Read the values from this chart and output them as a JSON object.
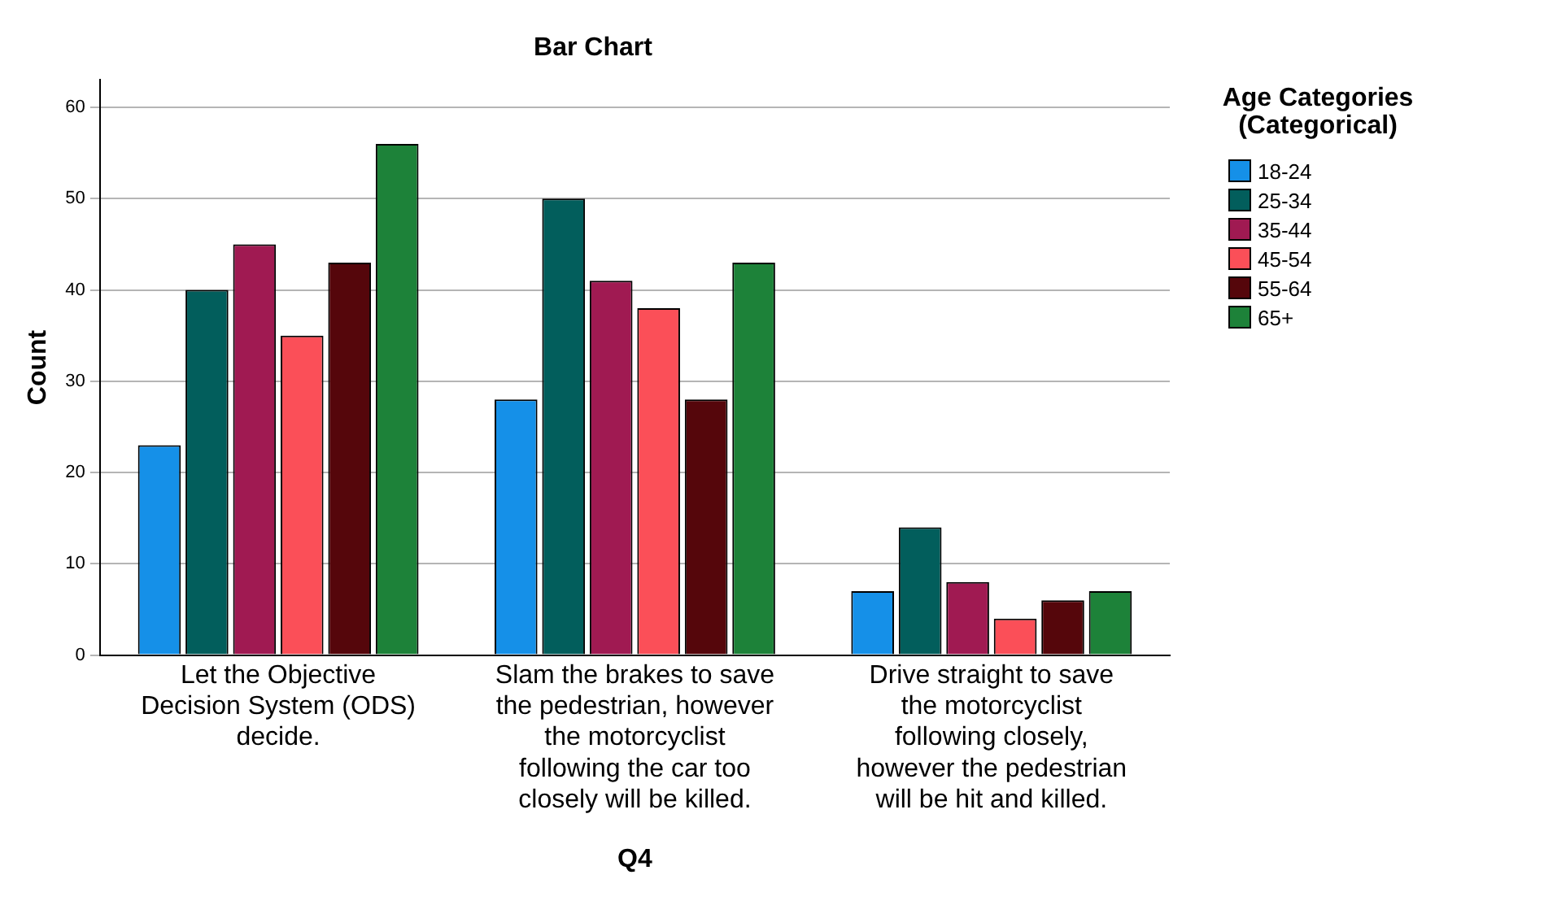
{
  "chart_data": {
    "type": "bar",
    "title": "Bar Chart",
    "xlabel": "Q4",
    "ylabel": "Count",
    "legend_title": "Age Categories (Categorical)",
    "categories": [
      "Let the Objective Decision System (ODS) decide.",
      "Slam the brakes to save the pedestrian, however the motorcyclist following the car too closely will be killed.",
      "Drive straight to save the motorcyclist following closely, however the pedestrian will be hit and killed."
    ],
    "series": [
      {
        "name": "18-24",
        "color": "#1590e8",
        "values": [
          23,
          28,
          7
        ]
      },
      {
        "name": "25-34",
        "color": "#025e5c",
        "values": [
          40,
          50,
          14
        ]
      },
      {
        "name": "35-44",
        "color": "#a01a52",
        "values": [
          45,
          41,
          8
        ]
      },
      {
        "name": "45-54",
        "color": "#fb4f58",
        "values": [
          35,
          38,
          4
        ]
      },
      {
        "name": "55-64",
        "color": "#55060b",
        "values": [
          43,
          28,
          6
        ]
      },
      {
        "name": "65+",
        "color": "#1d8239",
        "values": [
          56,
          43,
          7
        ]
      }
    ],
    "ylim": [
      0,
      63
    ],
    "yticks": [
      0,
      10,
      20,
      30,
      40,
      50,
      60
    ],
    "grid": "y",
    "legend": "right"
  }
}
